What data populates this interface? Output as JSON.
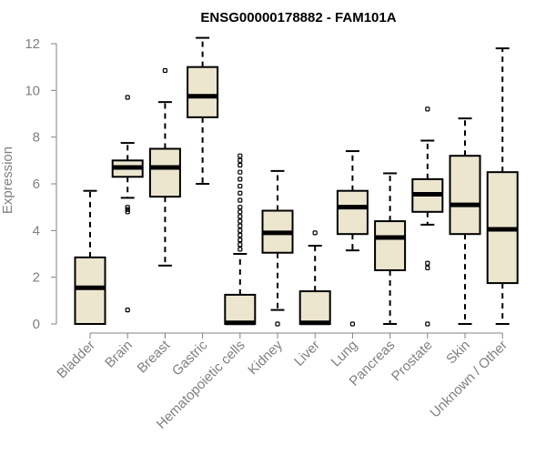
{
  "chart_data": {
    "type": "boxplot",
    "title": "ENSG00000178882 - FAM101A",
    "xlabel": "",
    "ylabel": "Expression",
    "ylim": [
      0,
      12
    ],
    "yticks": [
      0,
      2,
      4,
      6,
      8,
      10,
      12
    ],
    "colors": {
      "box_fill": "#ede6cf",
      "line": "#000000",
      "axis": "#808080"
    },
    "categories": [
      "Bladder",
      "Brain",
      "Breast",
      "Gastric",
      "Hematopoietic cells",
      "Kidney",
      "Liver",
      "Lung",
      "Pancreas",
      "Prostate",
      "Skin",
      "Unknown / Other"
    ],
    "boxes": [
      {
        "name": "Bladder",
        "min": 0.0,
        "q1": 0.0,
        "median": 1.55,
        "q3": 2.85,
        "max": 5.7,
        "outliers": []
      },
      {
        "name": "Brain",
        "min": 5.4,
        "q1": 6.3,
        "median": 6.7,
        "q3": 7.0,
        "max": 7.75,
        "outliers": [
          9.7,
          5.0,
          4.9,
          4.8,
          0.6
        ]
      },
      {
        "name": "Breast",
        "min": 2.5,
        "q1": 5.45,
        "median": 6.7,
        "q3": 7.5,
        "max": 9.5,
        "outliers": [
          10.85
        ]
      },
      {
        "name": "Gastric",
        "min": 6.0,
        "q1": 8.85,
        "median": 9.75,
        "q3": 11.0,
        "max": 12.25,
        "outliers": []
      },
      {
        "name": "Hematopoietic cells",
        "min": 0.0,
        "q1": 0.0,
        "median": 0.05,
        "q3": 1.25,
        "max": 3.0,
        "outliers": [
          3.2,
          3.4,
          3.6,
          3.8,
          4.0,
          4.2,
          4.4,
          4.6,
          4.8,
          5.0,
          5.3,
          5.6,
          5.9,
          6.2,
          6.5,
          6.8,
          7.0,
          7.2
        ]
      },
      {
        "name": "Kidney",
        "min": 0.6,
        "q1": 3.05,
        "median": 3.9,
        "q3": 4.85,
        "max": 6.55,
        "outliers": [
          0.0
        ]
      },
      {
        "name": "Liver",
        "min": 0.0,
        "q1": 0.0,
        "median": 0.05,
        "q3": 1.4,
        "max": 3.35,
        "outliers": [
          3.9
        ]
      },
      {
        "name": "Lung",
        "min": 3.15,
        "q1": 3.85,
        "median": 5.0,
        "q3": 5.7,
        "max": 7.4,
        "outliers": [
          0.0
        ]
      },
      {
        "name": "Pancreas",
        "min": 0.0,
        "q1": 2.3,
        "median": 3.7,
        "q3": 4.4,
        "max": 6.45,
        "outliers": []
      },
      {
        "name": "Prostate",
        "min": 4.25,
        "q1": 4.8,
        "median": 5.55,
        "q3": 6.2,
        "max": 7.85,
        "outliers": [
          9.2,
          2.6,
          2.4,
          0.0
        ]
      },
      {
        "name": "Skin",
        "min": 0.0,
        "q1": 3.85,
        "median": 5.1,
        "q3": 7.2,
        "max": 8.8,
        "outliers": []
      },
      {
        "name": "Unknown / Other",
        "min": 0.0,
        "q1": 1.75,
        "median": 4.05,
        "q3": 6.5,
        "max": 11.8,
        "outliers": []
      }
    ]
  }
}
